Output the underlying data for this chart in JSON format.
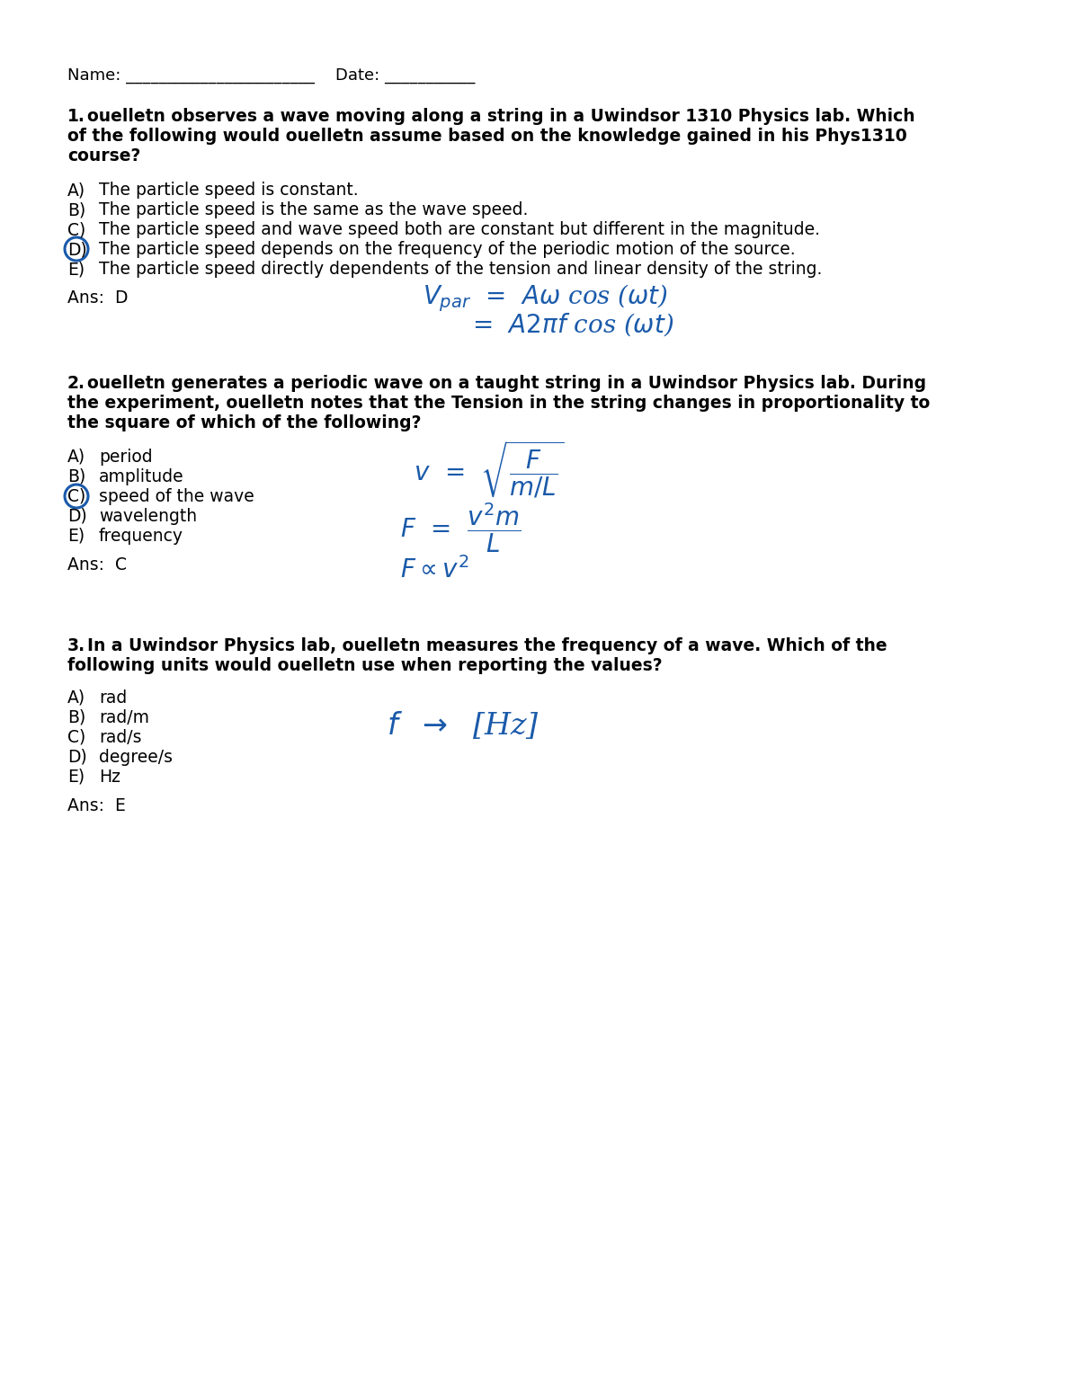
{
  "bg_color": "#ffffff",
  "text_color": "#000000",
  "handwriting_color": "#1a5aaa",
  "circle_color": "#1a5aaa",
  "name_line": "Name: _______________________    Date: ___________",
  "q1_number": "1.",
  "q1_text_line1": "  ouelletn observes a wave moving along a string in a Uwindsor 1310 Physics lab. Which",
  "q1_text_line2": "of the following would ouelletn assume based on the knowledge gained in his Phys1310",
  "q1_text_line3": "course?",
  "q1_options": [
    [
      "A)",
      "The particle speed is constant."
    ],
    [
      "B)",
      "The particle speed is the same as the wave speed."
    ],
    [
      "C)",
      "The particle speed and wave speed both are constant but different in the magnitude."
    ],
    [
      "D)",
      "The particle speed depends on the frequency of the periodic motion of the source."
    ],
    [
      "E)",
      "The particle speed directly dependents of the tension and linear density of the string."
    ]
  ],
  "q1_circled_idx": 3,
  "q1_ans": "Ans:  D",
  "q2_number": "2.",
  "q2_text_line1": "  ouelletn generates a periodic wave on a taught string in a Uwindsor Physics lab. During",
  "q2_text_line2": "the experiment, ouelletn notes that the Tension in the string changes in proportionality to",
  "q2_text_line3": "the square of which of the following?",
  "q2_options": [
    [
      "A)",
      "period"
    ],
    [
      "B)",
      "amplitude"
    ],
    [
      "C)",
      "speed of the wave"
    ],
    [
      "D)",
      "wavelength"
    ],
    [
      "E)",
      "frequency"
    ]
  ],
  "q2_circled_idx": 2,
  "q2_ans": "Ans:  C",
  "q3_number": "3.",
  "q3_text_line1": "  In a Uwindsor Physics lab, ouelletn measures the frequency of a wave. Which of the",
  "q3_text_line2": "following units would ouelletn use when reporting the values?",
  "q3_options": [
    [
      "A)",
      "rad"
    ],
    [
      "B)",
      "rad/m"
    ],
    [
      "C)",
      "rad/s"
    ],
    [
      "D)",
      "degree/s"
    ],
    [
      "E)",
      "Hz"
    ]
  ],
  "q3_ans": "Ans:  E"
}
